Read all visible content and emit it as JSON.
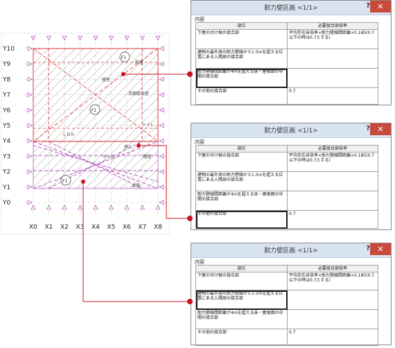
{
  "plan": {
    "y_axis_labels": [
      "Y10",
      "Y9",
      "Y8",
      "Y7",
      "Y6",
      "Y5",
      "Y4",
      "Y3",
      "Y2",
      "Y1",
      "Y0"
    ],
    "x_axis_labels": [
      "X0",
      "X1",
      "X2",
      "X3",
      "X4",
      "X5",
      "X6",
      "X7",
      "X8"
    ],
    "room_labels": [
      "和室",
      "寝室",
      "洗面脱衣室",
      "トイレ",
      "ＬＤＫ",
      "ホール",
      "押入",
      "階段",
      "玄関"
    ],
    "circle_labels": [
      "F1",
      "F1",
      "F1"
    ]
  },
  "dialogs": [
    {
      "title": "耐力壁区画 <1/1>",
      "help": "?",
      "close": "✕",
      "tab": "内容",
      "header_part": "部位",
      "header_rate": "必要接合部倍率",
      "rows": [
        {
          "part": "下屋の付け根の接合部",
          "rate": "平均存在床倍率×耐力壁線間距離×0.185(0.7以下の時は0.7とする)"
        },
        {
          "part": "建物の最外周の耐力壁線から1.5mを超える位置にある入隅部の接合部",
          "rate": ""
        },
        {
          "part": "耐力壁線間距離が4mを超える床・屋根面の中間の接合部",
          "rate": ""
        },
        {
          "part": "その他の接合部",
          "rate": "0.7"
        }
      ],
      "selected": 2
    },
    {
      "title": "耐力壁区画 <1/1>",
      "help": "?",
      "close": "✕",
      "tab": "内容",
      "header_part": "部位",
      "header_rate": "必要接合部倍率",
      "rows": [
        {
          "part": "下屋の付け根の接合部",
          "rate": "平均存在床倍率×耐力壁線間距離×0.185(0.7以下の時は0.7とする)"
        },
        {
          "part": "建物の最外周の耐力壁線から1.5mを超える位置にある入隅部の接合部",
          "rate": ""
        },
        {
          "part": "耐力壁線間距離が4mを超える床・屋根面の中間の接合部",
          "rate": ""
        },
        {
          "part": "その他の接合部",
          "rate": "0.7"
        }
      ],
      "selected": 3
    },
    {
      "title": "耐力壁区画 <1/1>",
      "help": "?",
      "close": "✕",
      "tab": "内容",
      "header_part": "部位",
      "header_rate": "必要接合部倍率",
      "rows": [
        {
          "part": "下屋の付け根の接合部",
          "rate": "平均存在床倍率×耐力壁線間距離×0.185(0.7以下の時は0.7とする)"
        },
        {
          "part": "建物の最外周の耐力壁線から1.5mを超える位置にある入隅部の接合部",
          "rate": ""
        },
        {
          "part": "耐力壁線間距離が4mを超える床・屋根面の中間の接合部",
          "rate": ""
        },
        {
          "part": "その他の接合部",
          "rate": "0.7"
        }
      ],
      "selected": 1
    }
  ],
  "colors": {
    "upper_block": "#e0303a",
    "lower_block": "#a52bb0",
    "callout": "#c8121e",
    "title_bar": "#d9e4f1",
    "close_button": "#c94a3d"
  }
}
